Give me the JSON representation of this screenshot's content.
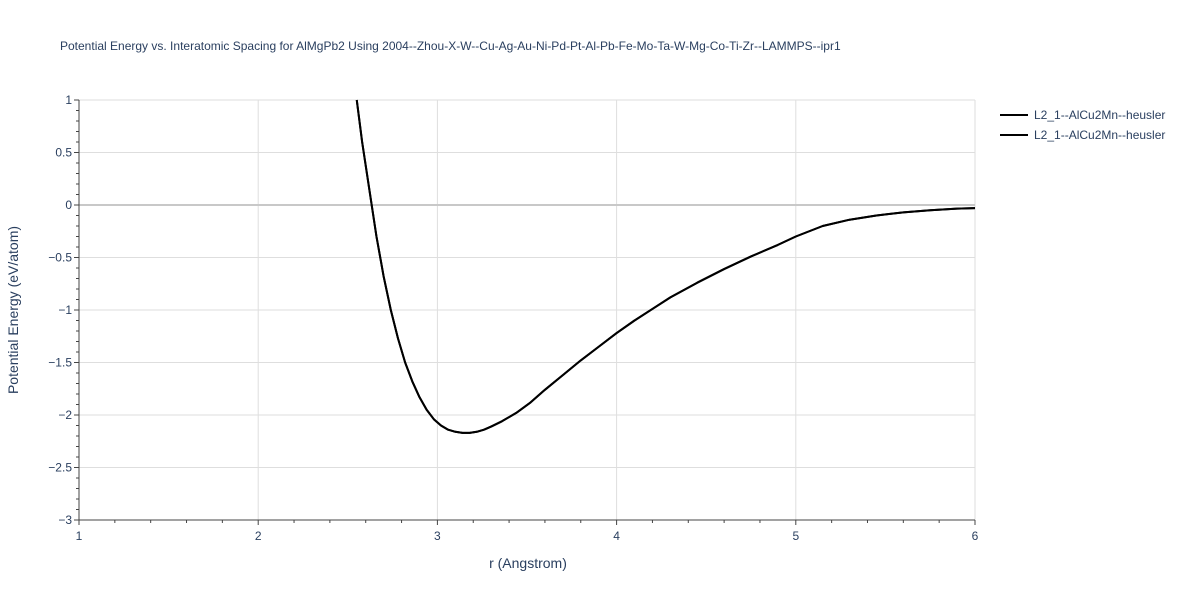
{
  "chart_data": {
    "type": "line",
    "title": "Potential Energy vs. Interatomic Spacing for AlMgPb2 Using 2004--Zhou-X-W--Cu-Ag-Au-Ni-Pd-Pt-Al-Pb-Fe-Mo-Ta-W-Mg-Co-Ti-Zr--LAMMPS--ipr1",
    "xlabel": "r (Angstrom)",
    "ylabel": "Potential Energy (eV/atom)",
    "xlim": [
      1,
      6
    ],
    "ylim": [
      -3,
      1
    ],
    "xticks": [
      1,
      2,
      3,
      4,
      5,
      6
    ],
    "xtick_labels": [
      "1",
      "2",
      "3",
      "4",
      "5",
      "6"
    ],
    "yticks": [
      1,
      0.5,
      0,
      -0.5,
      -1,
      -1.5,
      -2,
      -2.5,
      -3
    ],
    "ytick_labels": [
      "1",
      "0.5",
      "0",
      "−0.5",
      "−1",
      "−1.5",
      "−2",
      "−2.5",
      "−3"
    ],
    "grid": true,
    "legend_position": "top-right",
    "series": [
      {
        "name": "L2_1--AlCu2Mn--heusler",
        "color": "#000000",
        "x": [
          2.55,
          2.58,
          2.62,
          2.66,
          2.7,
          2.74,
          2.78,
          2.82,
          2.86,
          2.9,
          2.94,
          2.98,
          3.02,
          3.06,
          3.1,
          3.14,
          3.18,
          3.22,
          3.26,
          3.3,
          3.36,
          3.44,
          3.52,
          3.6,
          3.7,
          3.8,
          3.9,
          4.0,
          4.1,
          4.2,
          4.3,
          4.45,
          4.6,
          4.75,
          4.9,
          5.0,
          5.15,
          5.3,
          5.45,
          5.6,
          5.75,
          5.9,
          6.0
        ],
        "y": [
          1.0,
          0.6,
          0.15,
          -0.3,
          -0.68,
          -1.0,
          -1.27,
          -1.5,
          -1.68,
          -1.83,
          -1.95,
          -2.04,
          -2.1,
          -2.14,
          -2.16,
          -2.17,
          -2.17,
          -2.16,
          -2.14,
          -2.11,
          -2.06,
          -1.98,
          -1.88,
          -1.76,
          -1.62,
          -1.48,
          -1.35,
          -1.22,
          -1.1,
          -0.99,
          -0.88,
          -0.74,
          -0.61,
          -0.49,
          -0.38,
          -0.3,
          -0.2,
          -0.14,
          -0.1,
          -0.07,
          -0.05,
          -0.035,
          -0.03
        ]
      },
      {
        "name": "L2_1--AlCu2Mn--heusler",
        "color": "#000000",
        "x": [
          2.55,
          2.58,
          2.62,
          2.66,
          2.7,
          2.74,
          2.78,
          2.82,
          2.86,
          2.9,
          2.94,
          2.98,
          3.02,
          3.06,
          3.1,
          3.14,
          3.18,
          3.22,
          3.26,
          3.3,
          3.36,
          3.44,
          3.52,
          3.6,
          3.7,
          3.8,
          3.9,
          4.0,
          4.1,
          4.2,
          4.3,
          4.45,
          4.6,
          4.75,
          4.9,
          5.0,
          5.15,
          5.3,
          5.45,
          5.6,
          5.75,
          5.9,
          6.0
        ],
        "y": [
          1.0,
          0.6,
          0.15,
          -0.3,
          -0.68,
          -1.0,
          -1.27,
          -1.5,
          -1.68,
          -1.83,
          -1.95,
          -2.04,
          -2.1,
          -2.14,
          -2.16,
          -2.17,
          -2.17,
          -2.16,
          -2.14,
          -2.11,
          -2.06,
          -1.98,
          -1.88,
          -1.76,
          -1.62,
          -1.48,
          -1.35,
          -1.22,
          -1.1,
          -0.99,
          -0.88,
          -0.74,
          -0.61,
          -0.49,
          -0.38,
          -0.3,
          -0.2,
          -0.14,
          -0.1,
          -0.07,
          -0.05,
          -0.035,
          -0.03
        ]
      }
    ]
  }
}
